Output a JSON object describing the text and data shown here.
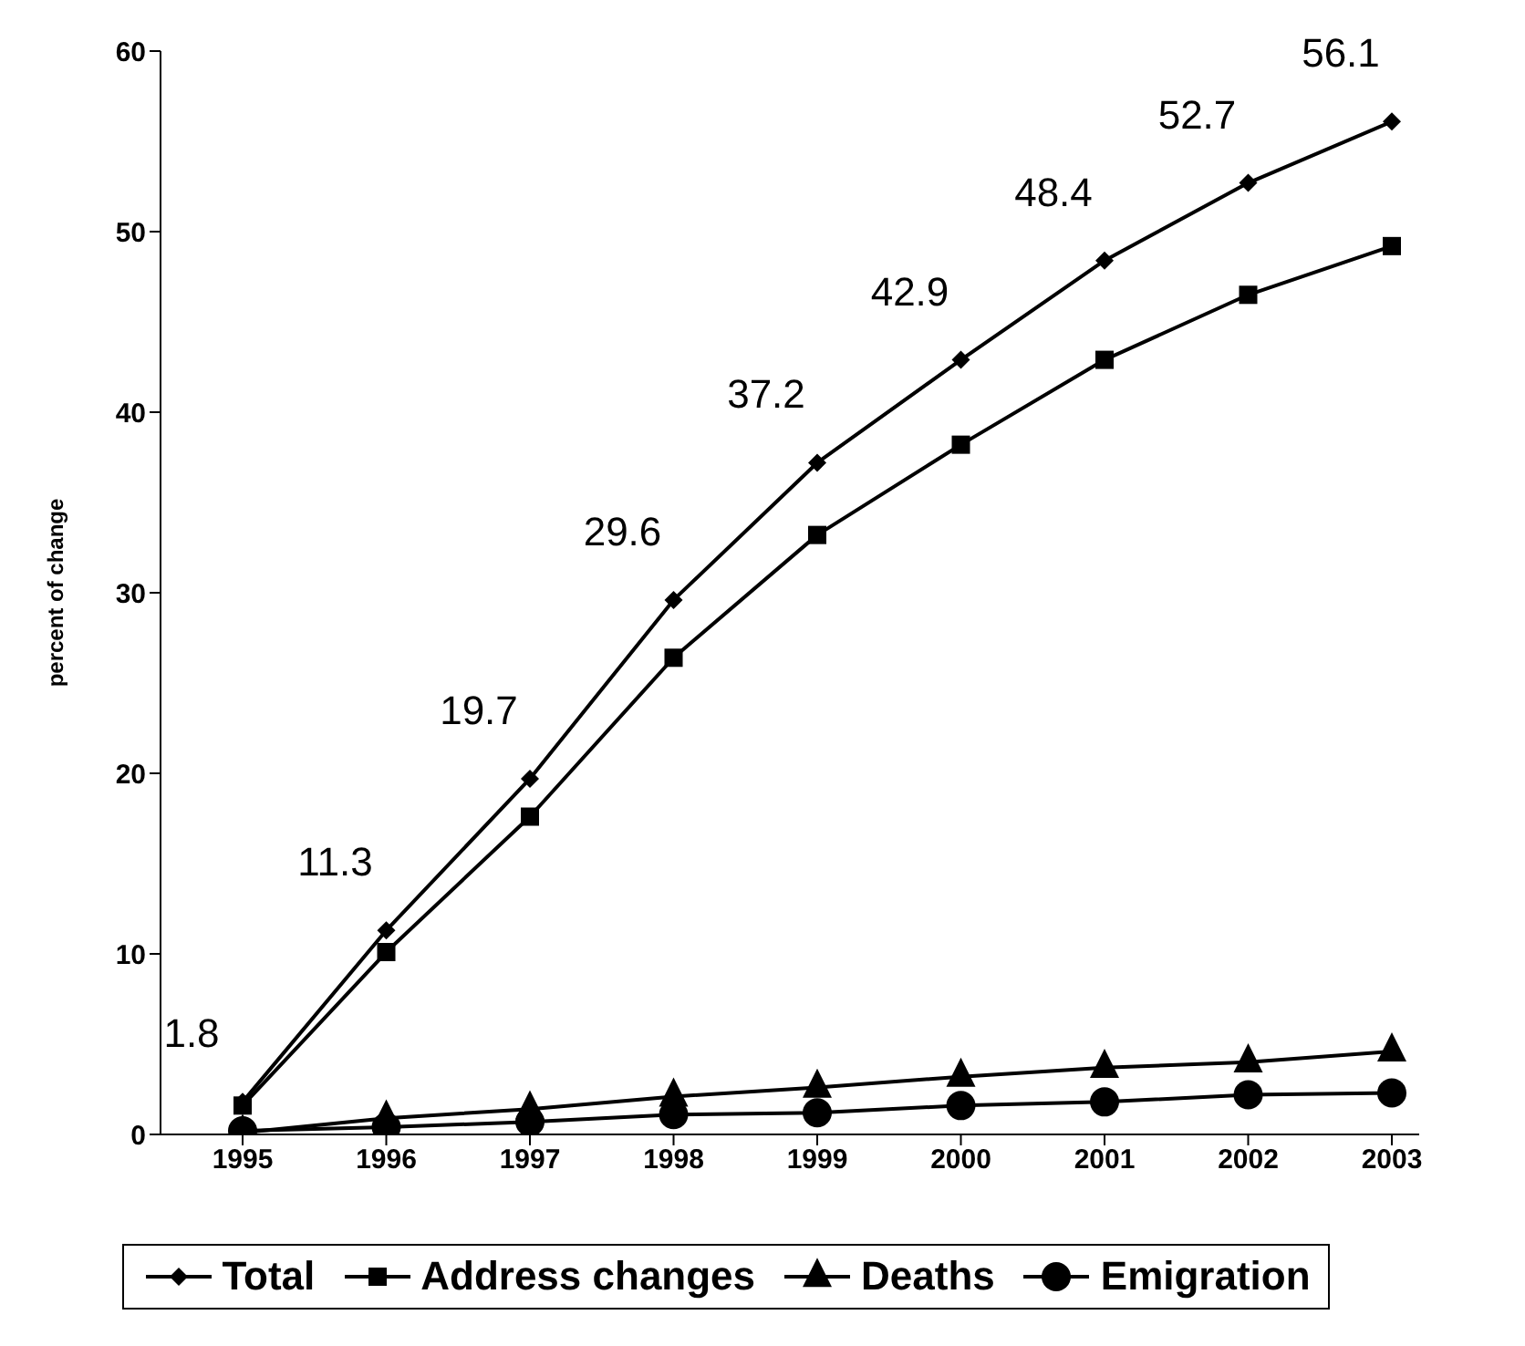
{
  "chart_data": {
    "type": "line",
    "ylabel": "percent of change",
    "categories": [
      "1995",
      "1996",
      "1997",
      "1998",
      "1999",
      "2000",
      "2001",
      "2002",
      "2003"
    ],
    "series": [
      {
        "name": "Total",
        "color": "#000000",
        "marker": "diamond",
        "values": [
          1.8,
          11.3,
          19.7,
          29.6,
          37.2,
          42.9,
          48.4,
          52.7,
          56.1
        ],
        "value_labels": [
          "1.8",
          "11.3",
          "19.7",
          "29.6",
          "37.2",
          "42.9",
          "48.4",
          "52.7",
          "56.1"
        ]
      },
      {
        "name": "Address changes",
        "color": "#000000",
        "marker": "square",
        "values": [
          1.6,
          10.1,
          17.6,
          26.4,
          33.2,
          38.2,
          42.9,
          46.5,
          49.2
        ]
      },
      {
        "name": "Deaths",
        "color": "#000000",
        "marker": "triangle",
        "values": [
          0.1,
          0.9,
          1.4,
          2.1,
          2.6,
          3.2,
          3.7,
          4.0,
          4.6
        ]
      },
      {
        "name": "Emigration",
        "color": "#000000",
        "marker": "circle",
        "values": [
          0.2,
          0.4,
          0.7,
          1.1,
          1.2,
          1.6,
          1.8,
          2.2,
          2.3
        ]
      }
    ],
    "ylim": [
      0,
      60
    ],
    "yticks": [
      0,
      10,
      20,
      30,
      40,
      50,
      60
    ],
    "grid": false,
    "legend": "bottom",
    "line_style": "solid"
  }
}
